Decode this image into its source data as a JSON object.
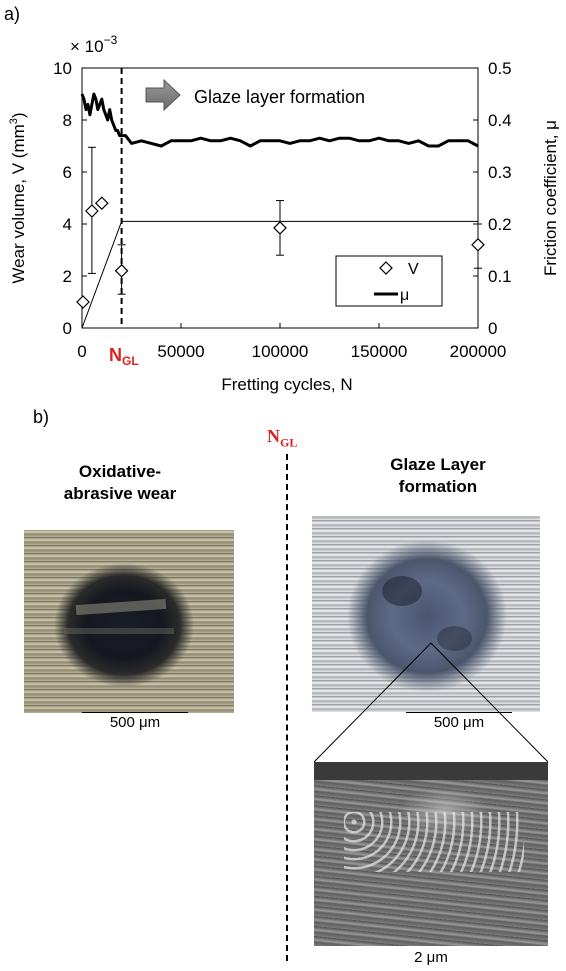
{
  "panel_a_label": "a)",
  "panel_b_label": "b)",
  "chart_data": {
    "type": "scatter",
    "x_axis": {
      "label": "Fretting cycles, N",
      "range": [
        0,
        200000
      ],
      "ticks": [
        "0",
        "50000",
        "100000",
        "150000",
        "200000"
      ],
      "extra_tick": "N",
      "extra_tick_sub": "GL"
    },
    "y_left": {
      "label": "Wear volume, V (mm",
      "label_sup": "3",
      "label_end": ")",
      "multiplier": "× 10",
      "multiplier_exp": "−3",
      "range": [
        0,
        10
      ],
      "ticks": [
        "0",
        "2",
        "4",
        "6",
        "8",
        "10"
      ]
    },
    "y_right": {
      "label": "Friction coefficient, μ",
      "range": [
        0,
        0.5
      ],
      "ticks": [
        "0",
        "0.1",
        "0.2",
        "0.3",
        "0.4",
        "0.5"
      ]
    },
    "n_gl": 20000,
    "plateau_level": 4.1,
    "series": [
      {
        "name": "V",
        "axis": "left",
        "marker": "diamond",
        "x": [
          500,
          5000,
          10000,
          20000,
          100000,
          200000
        ],
        "y": [
          1.0,
          4.5,
          4.8,
          2.2,
          3.85,
          3.2
        ],
        "err_low": [
          null,
          2.1,
          null,
          1.3,
          2.8,
          2.3
        ],
        "err_high": [
          null,
          6.95,
          null,
          3.2,
          4.9,
          4.0
        ]
      },
      {
        "name": "μ",
        "axis": "right",
        "marker": "line",
        "x": [
          0,
          1000,
          2000,
          3000,
          4000,
          5000,
          6000,
          7000,
          8000,
          9000,
          10000,
          11000,
          12000,
          13000,
          14000,
          15000,
          16000,
          17000,
          18000,
          19000,
          20000,
          22000,
          25000,
          30000,
          35000,
          40000,
          45000,
          50000,
          55000,
          60000,
          65000,
          70000,
          75000,
          80000,
          85000,
          90000,
          95000,
          100000,
          105000,
          110000,
          115000,
          120000,
          125000,
          130000,
          135000,
          140000,
          145000,
          150000,
          155000,
          160000,
          165000,
          170000,
          175000,
          180000,
          185000,
          190000,
          195000,
          200000
        ],
        "y": [
          0.45,
          0.44,
          0.42,
          0.43,
          0.41,
          0.43,
          0.45,
          0.44,
          0.42,
          0.43,
          0.44,
          0.42,
          0.41,
          0.4,
          0.42,
          0.4,
          0.39,
          0.38,
          0.38,
          0.37,
          0.37,
          0.37,
          0.355,
          0.36,
          0.355,
          0.35,
          0.36,
          0.36,
          0.36,
          0.365,
          0.36,
          0.36,
          0.365,
          0.36,
          0.35,
          0.36,
          0.36,
          0.36,
          0.355,
          0.36,
          0.36,
          0.365,
          0.36,
          0.365,
          0.365,
          0.36,
          0.36,
          0.365,
          0.36,
          0.36,
          0.355,
          0.36,
          0.35,
          0.35,
          0.36,
          0.36,
          0.36,
          0.35
        ]
      }
    ],
    "annotation": "Glaze layer formation"
  },
  "panel_b": {
    "ngl_label": "N",
    "ngl_sub": "GL",
    "left_caption_line1": "Oxidative-",
    "left_caption_line2": "abrasive wear",
    "right_caption_line1": "Glaze Layer",
    "right_caption_line2": "formation",
    "left_scale": "500 μm",
    "right_scale": "500 μm",
    "sem_scale": "2 μm"
  }
}
